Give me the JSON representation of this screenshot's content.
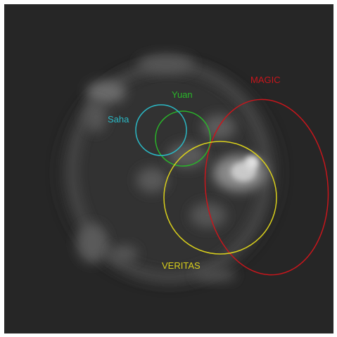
{
  "regions": [
    {
      "label": "MAGIC",
      "color": "#c8161c"
    },
    {
      "label": "Yuan",
      "color": "#2ab52a"
    },
    {
      "label": "Saha",
      "color": "#2bb8c4"
    },
    {
      "label": "VERITAS",
      "color": "#d9cf1c"
    }
  ],
  "background": {
    "color": "#262626"
  }
}
